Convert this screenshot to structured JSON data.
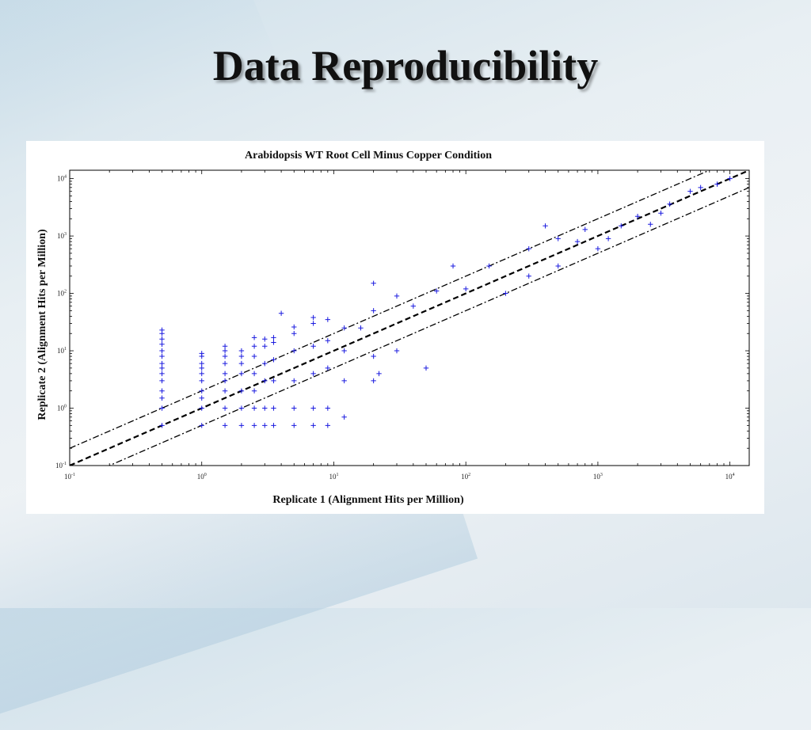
{
  "slide": {
    "title": "Data Reproducibility"
  },
  "colors": {
    "points": "#1a1adf",
    "lines": "#000000",
    "axes": "#000000"
  },
  "chart_data": {
    "type": "scatter",
    "title": "Arabidopsis WT Root Cell Minus Copper Condition",
    "xlabel": "Replicate 1 (Alignment Hits per Million)",
    "ylabel": "Replicate 2 (Alignment Hits per Million)",
    "xscale": "log",
    "yscale": "log",
    "xlim": [
      0.1,
      14000
    ],
    "ylim": [
      0.1,
      14000
    ],
    "xticks": [
      {
        "base": "10",
        "exp": "-1",
        "value": 0.1
      },
      {
        "base": "10",
        "exp": "0",
        "value": 1
      },
      {
        "base": "10",
        "exp": "1",
        "value": 10
      },
      {
        "base": "10",
        "exp": "2",
        "value": 100
      },
      {
        "base": "10",
        "exp": "3",
        "value": 1000
      },
      {
        "base": "10",
        "exp": "4",
        "value": 10000
      }
    ],
    "yticks": [
      {
        "base": "10",
        "exp": "-1",
        "value": 0.1
      },
      {
        "base": "10",
        "exp": "0",
        "value": 1
      },
      {
        "base": "10",
        "exp": "1",
        "value": 10
      },
      {
        "base": "10",
        "exp": "2",
        "value": 100
      },
      {
        "base": "10",
        "exp": "3",
        "value": 1000
      },
      {
        "base": "10",
        "exp": "4",
        "value": 10000
      }
    ],
    "marker": "+",
    "grid": false,
    "reference_lines": [
      {
        "style": "dashed",
        "relation": "y = x"
      },
      {
        "style": "dash-dot",
        "relation": "y = 2x"
      },
      {
        "style": "dash-dot",
        "relation": "y = 0.5x"
      }
    ],
    "series": [
      {
        "points": [
          [
            0.5,
            0.5
          ],
          [
            0.5,
            1
          ],
          [
            0.5,
            1.5
          ],
          [
            0.5,
            2
          ],
          [
            0.5,
            3
          ],
          [
            0.5,
            4
          ],
          [
            0.5,
            5
          ],
          [
            0.5,
            6
          ],
          [
            0.5,
            8
          ],
          [
            0.5,
            10
          ],
          [
            0.5,
            13
          ],
          [
            0.5,
            16
          ],
          [
            0.5,
            20
          ],
          [
            0.5,
            23
          ],
          [
            1,
            0.5
          ],
          [
            1,
            1
          ],
          [
            1,
            1.5
          ],
          [
            1,
            2
          ],
          [
            1,
            3
          ],
          [
            1,
            4
          ],
          [
            1,
            5
          ],
          [
            1,
            6
          ],
          [
            1,
            8
          ],
          [
            1,
            9
          ],
          [
            1.5,
            0.5
          ],
          [
            1.5,
            1
          ],
          [
            1.5,
            2
          ],
          [
            1.5,
            3
          ],
          [
            1.5,
            4
          ],
          [
            1.5,
            6
          ],
          [
            1.5,
            8
          ],
          [
            1.5,
            10
          ],
          [
            1.5,
            12
          ],
          [
            2,
            0.5
          ],
          [
            2,
            1
          ],
          [
            2,
            2
          ],
          [
            2,
            4
          ],
          [
            2,
            6
          ],
          [
            2,
            8
          ],
          [
            2,
            10
          ],
          [
            2.5,
            0.5
          ],
          [
            2.5,
            1
          ],
          [
            2.5,
            2
          ],
          [
            2.5,
            4
          ],
          [
            2.5,
            8
          ],
          [
            2.5,
            12
          ],
          [
            2.5,
            17
          ],
          [
            3,
            0.5
          ],
          [
            3,
            1
          ],
          [
            3,
            3
          ],
          [
            3,
            6
          ],
          [
            3,
            12
          ],
          [
            3,
            16
          ],
          [
            3.5,
            0.5
          ],
          [
            3.5,
            1
          ],
          [
            3.5,
            3
          ],
          [
            3.5,
            7
          ],
          [
            3.5,
            14
          ],
          [
            3.5,
            17
          ],
          [
            5,
            0.5
          ],
          [
            5,
            1
          ],
          [
            5,
            3
          ],
          [
            5,
            10
          ],
          [
            5,
            20
          ],
          [
            5,
            26
          ],
          [
            7,
            0.5
          ],
          [
            7,
            1
          ],
          [
            7,
            4
          ],
          [
            7,
            12
          ],
          [
            7,
            30
          ],
          [
            7,
            38
          ],
          [
            9,
            0.5
          ],
          [
            9,
            1
          ],
          [
            9,
            5
          ],
          [
            9,
            15
          ],
          [
            9,
            35
          ],
          [
            12,
            0.7
          ],
          [
            12,
            3
          ],
          [
            12,
            10
          ],
          [
            12,
            25
          ],
          [
            20,
            3
          ],
          [
            20,
            8
          ],
          [
            20,
            50
          ],
          [
            20,
            150
          ],
          [
            30,
            10
          ],
          [
            50,
            5
          ],
          [
            22,
            4
          ],
          [
            4,
            45
          ],
          [
            30,
            90
          ],
          [
            80,
            300
          ],
          [
            100,
            120
          ],
          [
            200,
            100
          ],
          [
            300,
            200
          ],
          [
            500,
            300
          ],
          [
            1000,
            600
          ],
          [
            300,
            600
          ],
          [
            400,
            1500
          ],
          [
            500,
            900
          ],
          [
            700,
            800
          ],
          [
            1500,
            1500
          ],
          [
            2000,
            2200
          ],
          [
            3000,
            2500
          ],
          [
            3500,
            3600
          ],
          [
            5000,
            6000
          ],
          [
            6000,
            7000
          ],
          [
            8000,
            8000
          ],
          [
            10000,
            10000
          ],
          [
            2500,
            1600
          ],
          [
            1200,
            900
          ],
          [
            800,
            1300
          ],
          [
            150,
            300
          ],
          [
            60,
            110
          ],
          [
            40,
            60
          ],
          [
            16,
            25
          ]
        ]
      }
    ]
  }
}
